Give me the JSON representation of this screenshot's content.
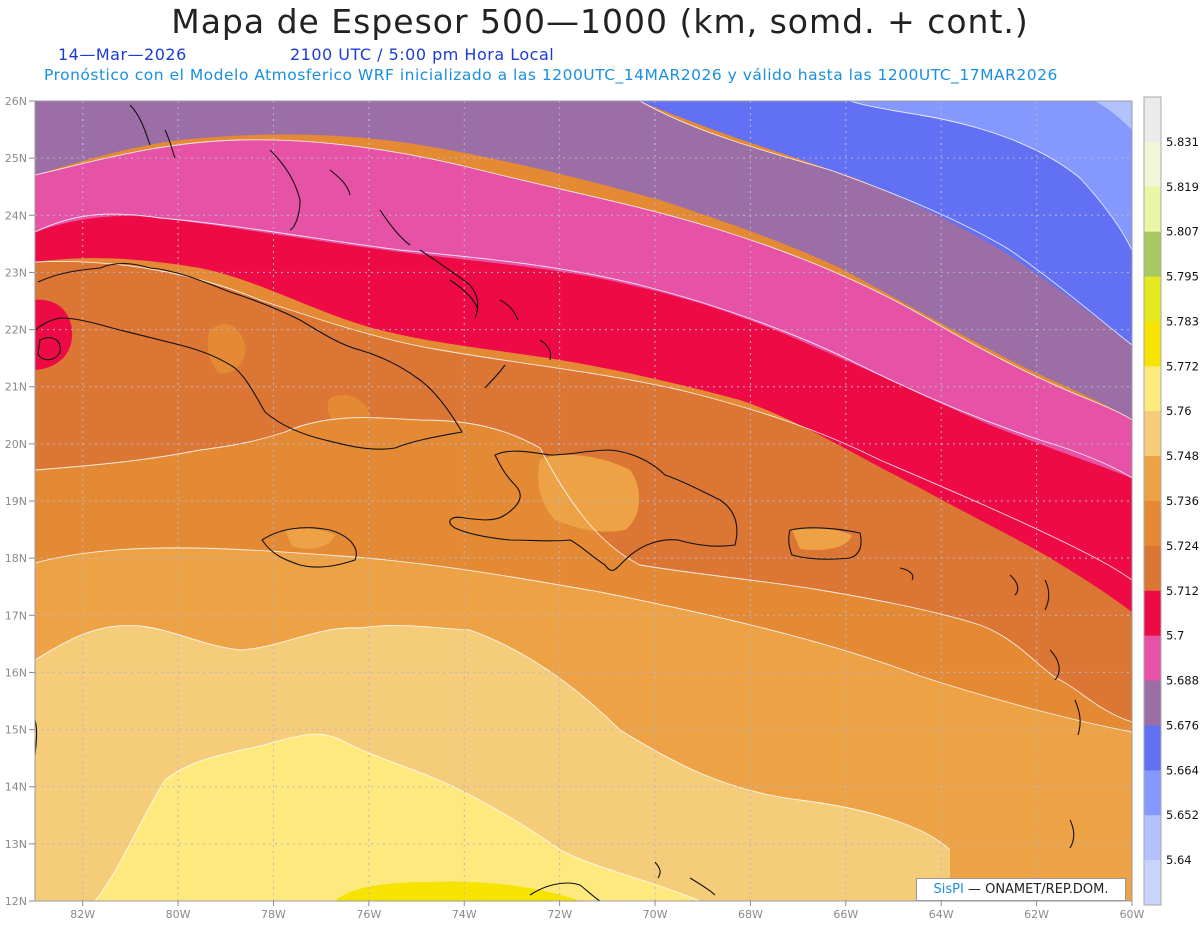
{
  "header": {
    "title": "Mapa de Espesor 500—1000 (km, somd. + cont.)",
    "date": "14—Mar—2026",
    "time": "2100 UTC / 5:00 pm Hora Local",
    "run": "Pronóstico con el Modelo Atmosferico WRF inicializado a las 1200UTC_14MAR2026 y válido hasta las  1200UTC_17MAR2026"
  },
  "axes": {
    "lat_labels": [
      "26N",
      "25N",
      "24N",
      "23N",
      "22N",
      "21N",
      "20N",
      "19N",
      "18N",
      "17N",
      "16N",
      "15N",
      "14N",
      "13N",
      "12N"
    ],
    "lon_labels": [
      "82W",
      "80W",
      "78W",
      "76W",
      "74W",
      "72W",
      "70W",
      "68W",
      "66W",
      "64W",
      "62W",
      "60W"
    ]
  },
  "colorbar": {
    "labels": [
      "5.831",
      "5.819",
      "5.807",
      "5.795",
      "5.783",
      "5.772",
      "5.76",
      "5.748",
      "5.736",
      "5.724",
      "5.712",
      "5.7",
      "5.688",
      "5.676",
      "5.664",
      "5.652",
      "5.64"
    ],
    "colors": [
      "#ebebeb",
      "#f3f6d6",
      "#e8f6a6",
      "#a8c862",
      "#e6e81e",
      "#f6e400",
      "#fde97e",
      "#f5cd7a",
      "#eca245",
      "#e48a34",
      "#dc7634",
      "#ee0a44",
      "#e653a6",
      "#9c6ea6",
      "#6270f4",
      "#8498fe",
      "#b3c2fd",
      "#c9d4fd"
    ]
  },
  "credit": {
    "brand": "SisPI",
    "text": "— ONAMET/REP.DOM."
  },
  "chart_data": {
    "type": "heatmap",
    "title": "Mapa de Espesor 500—1000 (km, somd. + cont.)",
    "xlabel": "",
    "ylabel": "",
    "xlim": [
      -83,
      -60
    ],
    "ylim": [
      12,
      26
    ],
    "units": "km",
    "levels": [
      5.64,
      5.652,
      5.664,
      5.676,
      5.688,
      5.7,
      5.712,
      5.724,
      5.736,
      5.748,
      5.76,
      5.772,
      5.783,
      5.795,
      5.807,
      5.819,
      5.831
    ],
    "field_regions_descending_from_north": [
      {
        "range": [
          5.652,
          5.664
        ],
        "location": "far northeast corner"
      },
      {
        "range": [
          5.664,
          5.676
        ],
        "location": "northeast"
      },
      {
        "range": [
          5.676,
          5.688
        ],
        "location": "north band"
      },
      {
        "range": [
          5.688,
          5.7
        ],
        "location": "band over Bahamas"
      },
      {
        "range": [
          5.7,
          5.712
        ],
        "location": "band north of Cuba to Lesser Antilles"
      },
      {
        "range": [
          5.712,
          5.724
        ],
        "location": "Cuba, Hispaniola, Puerto Rico band"
      },
      {
        "range": [
          5.724,
          5.736
        ],
        "location": "Caribbean band"
      },
      {
        "range": [
          5.736,
          5.748
        ],
        "location": "central Caribbean"
      },
      {
        "range": [
          5.748,
          5.76
        ],
        "location": "southwest Caribbean"
      },
      {
        "range": [
          5.76,
          5.772
        ],
        "location": "southwest near 13N 76W"
      },
      {
        "range": [
          5.772,
          5.783
        ],
        "location": "south edge near 12N 75W"
      }
    ]
  }
}
